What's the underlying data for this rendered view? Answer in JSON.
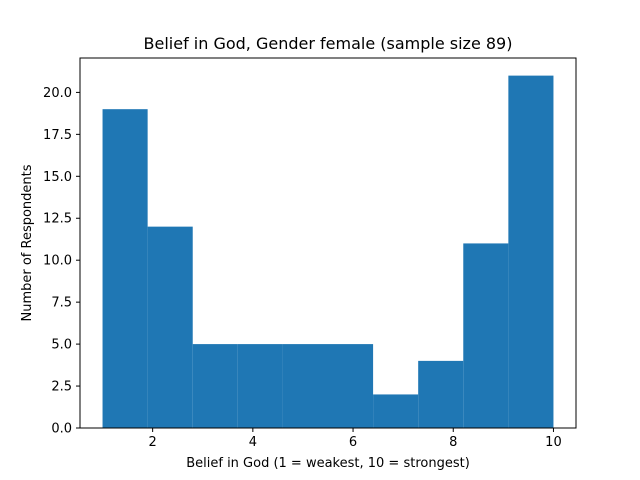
{
  "chart_data": {
    "type": "bar",
    "title": "Belief in God, Gender female (sample size 89)",
    "xlabel": "Belief in God (1 = weakest, 10 = strongest)",
    "ylabel": "Number of Respondents",
    "xlim": [
      0.55,
      10.45
    ],
    "ylim": [
      0,
      22.05
    ],
    "grid": false,
    "bar_color": "#1f77b4",
    "bins": [
      {
        "x0": 1.0,
        "x1": 1.9,
        "count": 19
      },
      {
        "x0": 1.9,
        "x1": 2.8,
        "count": 12
      },
      {
        "x0": 2.8,
        "x1": 3.7,
        "count": 5
      },
      {
        "x0": 3.7,
        "x1": 4.6,
        "count": 5
      },
      {
        "x0": 4.6,
        "x1": 5.5,
        "count": 5
      },
      {
        "x0": 5.5,
        "x1": 6.4,
        "count": 5
      },
      {
        "x0": 6.4,
        "x1": 7.3,
        "count": 2
      },
      {
        "x0": 7.3,
        "x1": 8.2,
        "count": 4
      },
      {
        "x0": 8.2,
        "x1": 9.1,
        "count": 11
      },
      {
        "x0": 9.1,
        "x1": 10.0,
        "count": 21
      }
    ],
    "x_ticks": [
      2,
      4,
      6,
      8,
      10
    ],
    "x_tick_labels": [
      "2",
      "4",
      "6",
      "8",
      "10"
    ],
    "y_ticks": [
      0,
      2.5,
      5,
      7.5,
      10,
      12.5,
      15,
      17.5,
      20
    ],
    "y_tick_labels": [
      "0.0",
      "2.5",
      "5.0",
      "7.5",
      "10.0",
      "12.5",
      "15.0",
      "17.5",
      "20.0"
    ]
  }
}
